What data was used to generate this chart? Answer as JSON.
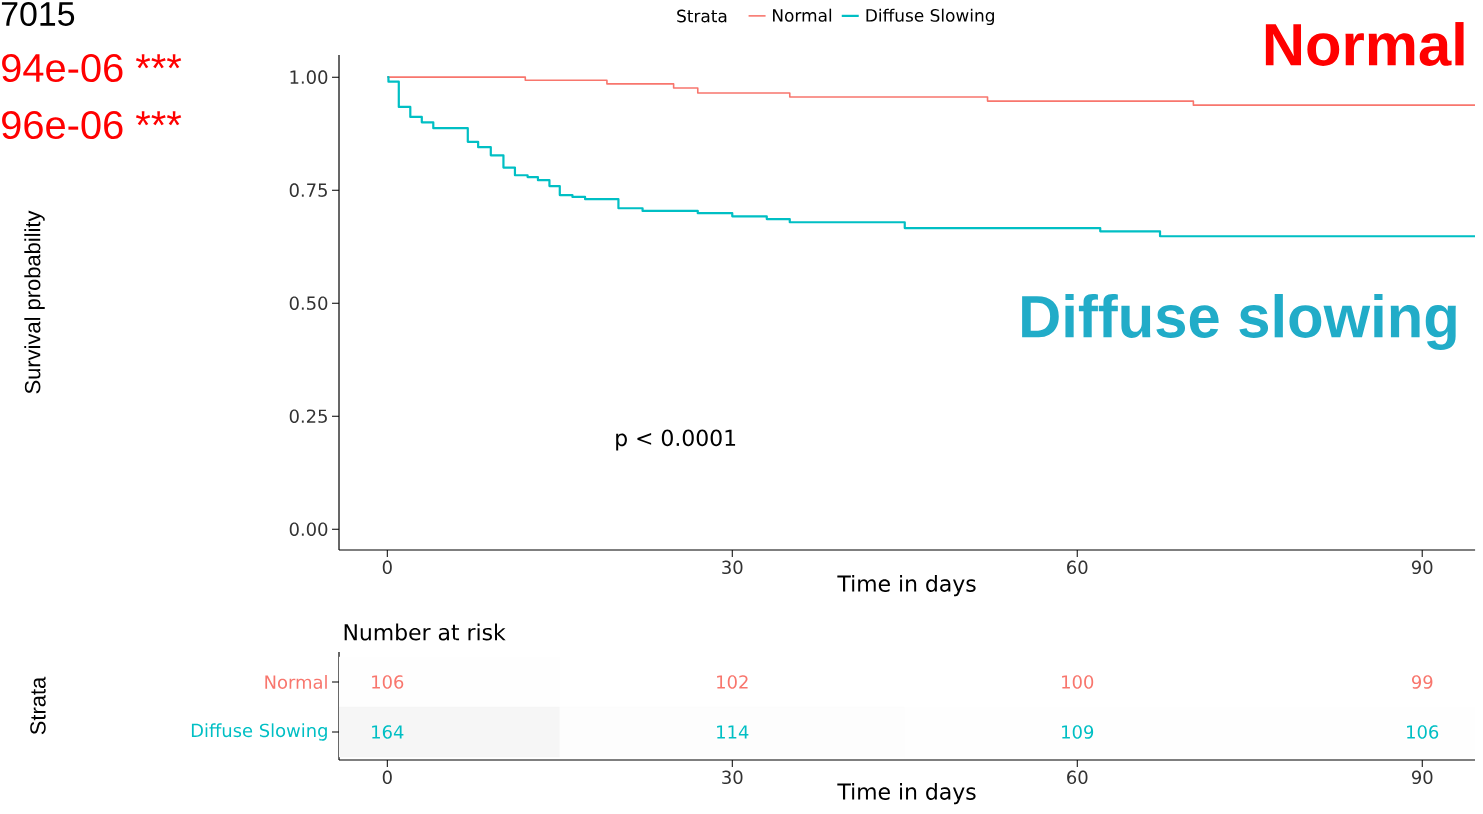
{
  "chart_data": [
    {
      "type": "step",
      "xlabel": "Time in days",
      "ylabel": "Survival probability",
      "legend_title": "Strata",
      "legend": "top",
      "marker": "none",
      "grid": false,
      "xlim": [
        -4.2,
        94.6
      ],
      "xticks": [
        0,
        30,
        60,
        90
      ],
      "ylim": [
        -0.046,
        1.049
      ],
      "yticks": [
        {
          "value": 0,
          "label": "0.00"
        },
        {
          "value": 0.25,
          "label": "0.25"
        },
        {
          "value": 0.5,
          "label": "0.50"
        },
        {
          "value": 0.75,
          "label": "0.75"
        },
        {
          "value": 1,
          "label": "1.00"
        }
      ],
      "annotations": [
        "7015",
        "94e-06 ***",
        "96e-06 ***",
        "Normal",
        "Diffuse slowing",
        "p < 0.0001"
      ],
      "series": [
        {
          "name": "Normal",
          "color": "#f8766d",
          "x": [
            0,
            12.0,
            19.1,
            24.9,
            27.0,
            35.0,
            52.2,
            70.1,
            94.6
          ],
          "values": [
            1.0,
            0.993,
            0.985,
            0.976,
            0.965,
            0.956,
            0.947,
            0.938,
            0.938
          ]
        },
        {
          "name": "Diffuse Slowing",
          "color": "#00bfc4",
          "x": [
            0,
            0.1,
            1.0,
            2.0,
            3.0,
            4.0,
            7.0,
            7.9,
            9.0,
            10.1,
            11.1,
            12.2,
            13.1,
            14.1,
            15.0,
            16.1,
            17.2,
            20.1,
            22.2,
            27.0,
            30.0,
            33.0,
            35.0,
            45.0,
            62.0,
            67.2,
            94.6
          ],
          "values": [
            1.0,
            0.99,
            0.934,
            0.912,
            0.9,
            0.887,
            0.857,
            0.845,
            0.827,
            0.8,
            0.783,
            0.779,
            0.772,
            0.759,
            0.739,
            0.735,
            0.73,
            0.71,
            0.704,
            0.699,
            0.692,
            0.686,
            0.679,
            0.666,
            0.659,
            0.648,
            0.648
          ]
        }
      ]
    },
    {
      "type": "heatmap",
      "title": "Number at risk",
      "xlabel": "Time in days",
      "ylabel": "Strata",
      "categories": [
        "0",
        "30",
        "60",
        "90"
      ],
      "y_categories": [
        "Normal",
        "Diffuse Slowing"
      ],
      "cells": [
        [
          106,
          102,
          100,
          99
        ],
        [
          164,
          114,
          109,
          106
        ]
      ],
      "cell_labels": [
        [
          "106",
          "102",
          "100",
          "99"
        ],
        [
          "164",
          "114",
          "109",
          "106"
        ]
      ]
    }
  ]
}
